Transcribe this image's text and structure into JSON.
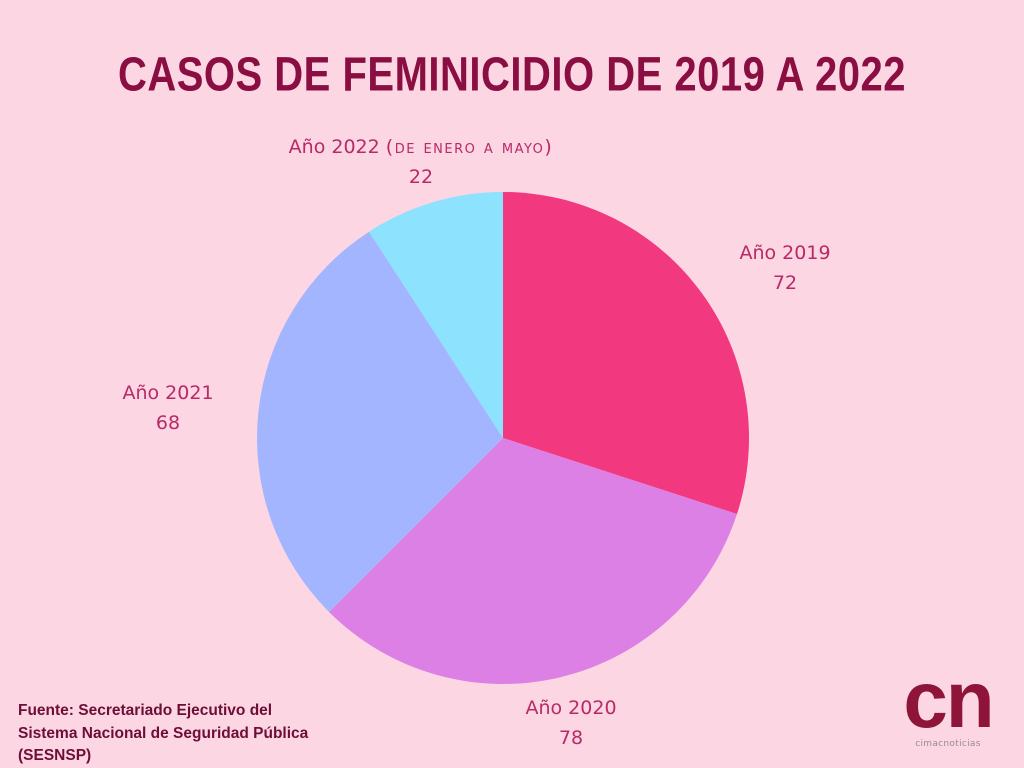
{
  "colors": {
    "background": "#fcd6e3",
    "title": "#8a0e41",
    "label": "#b72a66",
    "source": "#6e0d36",
    "logo": "#8e1539",
    "logo_sub": "#9c8a92"
  },
  "chart_data": {
    "type": "pie",
    "title": "CASOS DE FEMINICIDIO DE 2019 A 2022",
    "slices": [
      {
        "label": "Año 2019",
        "value": 72,
        "color": "#f2387f"
      },
      {
        "label": "Año 2020",
        "value": 78,
        "color": "#dd80e5"
      },
      {
        "label": "Año 2021",
        "value": 68,
        "color": "#a3b5ff"
      },
      {
        "label": "Año 2022",
        "note": "(de enero a mayo)",
        "value": 22,
        "color": "#8de2fd"
      }
    ]
  },
  "source": {
    "lines": [
      "Fuente: Secretariado Ejecutivo del",
      "Sistema Nacional de Seguridad Pública",
      "(SESNSP)"
    ]
  },
  "logo": {
    "mark": "cn",
    "name": "cimacnoticias"
  }
}
